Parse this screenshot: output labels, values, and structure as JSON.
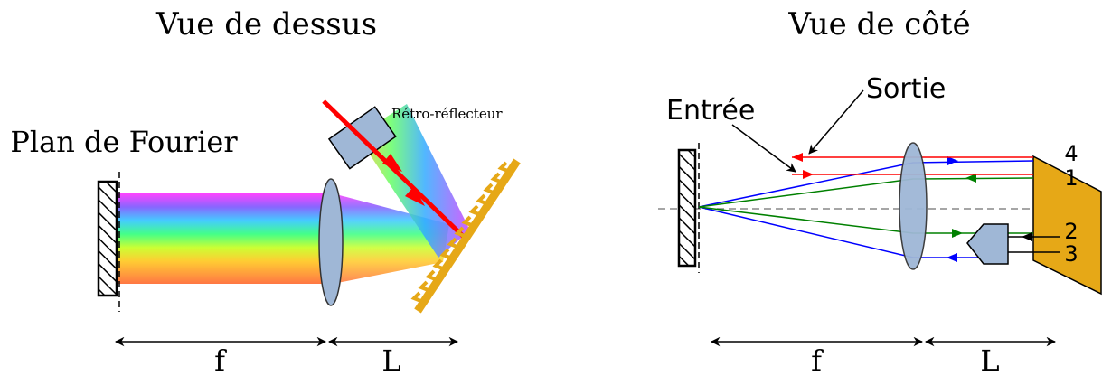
{
  "left_panel": {
    "title": "Vue de dessus",
    "label_fourier_plane": "Plan de Fourier",
    "label_retroreflector": "Rétro-réflecteur",
    "dim_f": "f",
    "dim_L": "L"
  },
  "right_panel": {
    "title": "Vue de côté",
    "label_input": "Entrée",
    "label_output": "Sortie",
    "beam_numbers": [
      "4",
      "1",
      "2",
      "3"
    ],
    "dim_f": "f",
    "dim_L": "L"
  },
  "colors": {
    "beam_red": "#ff0000",
    "beam_blue": "#0000ff",
    "beam_green": "#008000",
    "lens_fill": "#9fb7d6",
    "grating_fill": "#e6a817",
    "dashed_axis": "#888888"
  }
}
